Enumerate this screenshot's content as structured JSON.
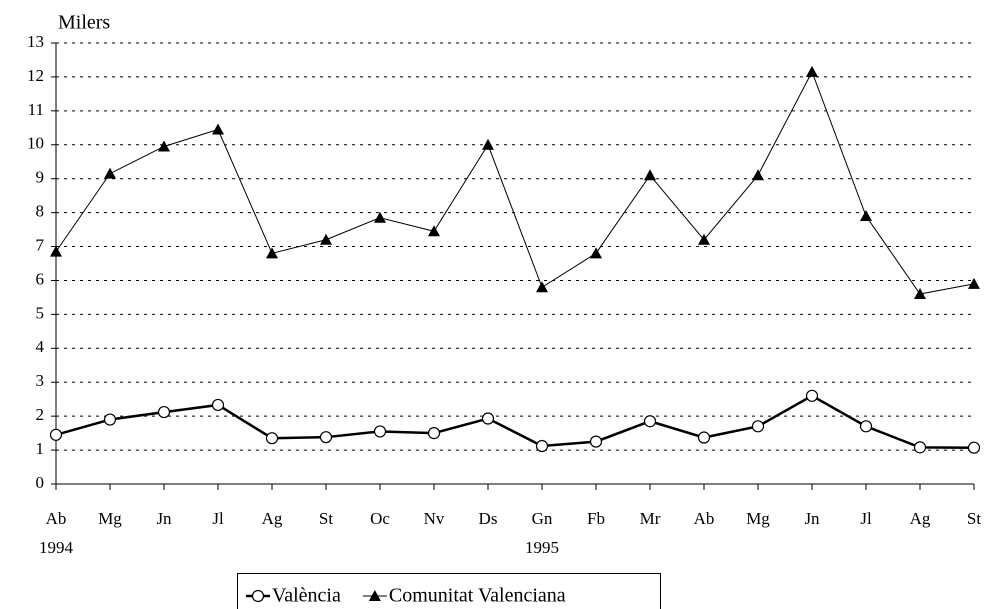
{
  "chart_data": {
    "type": "line",
    "y_label": "Milers",
    "categories": [
      "Ab",
      "Mg",
      "Jn",
      "Jl",
      "Ag",
      "St",
      "Oc",
      "Nv",
      "Ds",
      "Gn",
      "Fb",
      "Mr",
      "Ab",
      "Mg",
      "Jn",
      "Jl",
      "Ag",
      "St"
    ],
    "year_labels": [
      "1994",
      null,
      null,
      null,
      null,
      null,
      null,
      null,
      null,
      "1995",
      null,
      null,
      null,
      null,
      null,
      null,
      null,
      null
    ],
    "series": [
      {
        "name": "València",
        "color": "#000000",
        "marker": "circle",
        "line_width": 2.5,
        "values": [
          1.45,
          1.9,
          2.12,
          2.33,
          1.35,
          1.38,
          1.55,
          1.5,
          1.93,
          1.12,
          1.25,
          1.85,
          1.37,
          1.7,
          2.6,
          1.7,
          1.08,
          1.07
        ]
      },
      {
        "name": "Comunitat Valenciana",
        "color": "#000000",
        "marker": "triangle",
        "line_width": 1,
        "values": [
          6.85,
          9.15,
          9.95,
          10.45,
          6.8,
          7.2,
          7.85,
          7.45,
          10.0,
          5.8,
          6.8,
          9.1,
          7.2,
          9.1,
          12.15,
          7.9,
          5.6,
          5.9
        ]
      }
    ],
    "ylim": [
      0,
      13
    ],
    "yticks": [
      0,
      1,
      2,
      3,
      4,
      5,
      6,
      7,
      8,
      9,
      10,
      11,
      12,
      13
    ],
    "grid": true,
    "legend": "bottom"
  }
}
